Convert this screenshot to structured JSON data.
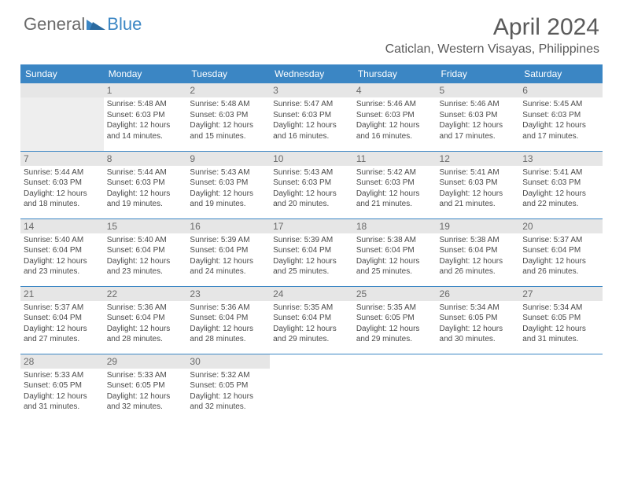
{
  "logo": {
    "general": "General",
    "blue": "Blue"
  },
  "title": "April 2024",
  "location": "Caticlan, Western Visayas, Philippines",
  "colors": {
    "header_bg": "#3b86c4",
    "header_text": "#ffffff",
    "border": "#3b86c4",
    "daynum_bg": "#e6e6e6",
    "text": "#4a4a4a",
    "title_text": "#5a5a5a"
  },
  "dayNames": [
    "Sunday",
    "Monday",
    "Tuesday",
    "Wednesday",
    "Thursday",
    "Friday",
    "Saturday"
  ],
  "weeks": [
    [
      null,
      {
        "n": "1",
        "sr": "5:48 AM",
        "ss": "6:03 PM",
        "dl": "12 hours and 14 minutes."
      },
      {
        "n": "2",
        "sr": "5:48 AM",
        "ss": "6:03 PM",
        "dl": "12 hours and 15 minutes."
      },
      {
        "n": "3",
        "sr": "5:47 AM",
        "ss": "6:03 PM",
        "dl": "12 hours and 16 minutes."
      },
      {
        "n": "4",
        "sr": "5:46 AM",
        "ss": "6:03 PM",
        "dl": "12 hours and 16 minutes."
      },
      {
        "n": "5",
        "sr": "5:46 AM",
        "ss": "6:03 PM",
        "dl": "12 hours and 17 minutes."
      },
      {
        "n": "6",
        "sr": "5:45 AM",
        "ss": "6:03 PM",
        "dl": "12 hours and 17 minutes."
      }
    ],
    [
      {
        "n": "7",
        "sr": "5:44 AM",
        "ss": "6:03 PM",
        "dl": "12 hours and 18 minutes."
      },
      {
        "n": "8",
        "sr": "5:44 AM",
        "ss": "6:03 PM",
        "dl": "12 hours and 19 minutes."
      },
      {
        "n": "9",
        "sr": "5:43 AM",
        "ss": "6:03 PM",
        "dl": "12 hours and 19 minutes."
      },
      {
        "n": "10",
        "sr": "5:43 AM",
        "ss": "6:03 PM",
        "dl": "12 hours and 20 minutes."
      },
      {
        "n": "11",
        "sr": "5:42 AM",
        "ss": "6:03 PM",
        "dl": "12 hours and 21 minutes."
      },
      {
        "n": "12",
        "sr": "5:41 AM",
        "ss": "6:03 PM",
        "dl": "12 hours and 21 minutes."
      },
      {
        "n": "13",
        "sr": "5:41 AM",
        "ss": "6:03 PM",
        "dl": "12 hours and 22 minutes."
      }
    ],
    [
      {
        "n": "14",
        "sr": "5:40 AM",
        "ss": "6:04 PM",
        "dl": "12 hours and 23 minutes."
      },
      {
        "n": "15",
        "sr": "5:40 AM",
        "ss": "6:04 PM",
        "dl": "12 hours and 23 minutes."
      },
      {
        "n": "16",
        "sr": "5:39 AM",
        "ss": "6:04 PM",
        "dl": "12 hours and 24 minutes."
      },
      {
        "n": "17",
        "sr": "5:39 AM",
        "ss": "6:04 PM",
        "dl": "12 hours and 25 minutes."
      },
      {
        "n": "18",
        "sr": "5:38 AM",
        "ss": "6:04 PM",
        "dl": "12 hours and 25 minutes."
      },
      {
        "n": "19",
        "sr": "5:38 AM",
        "ss": "6:04 PM",
        "dl": "12 hours and 26 minutes."
      },
      {
        "n": "20",
        "sr": "5:37 AM",
        "ss": "6:04 PM",
        "dl": "12 hours and 26 minutes."
      }
    ],
    [
      {
        "n": "21",
        "sr": "5:37 AM",
        "ss": "6:04 PM",
        "dl": "12 hours and 27 minutes."
      },
      {
        "n": "22",
        "sr": "5:36 AM",
        "ss": "6:04 PM",
        "dl": "12 hours and 28 minutes."
      },
      {
        "n": "23",
        "sr": "5:36 AM",
        "ss": "6:04 PM",
        "dl": "12 hours and 28 minutes."
      },
      {
        "n": "24",
        "sr": "5:35 AM",
        "ss": "6:04 PM",
        "dl": "12 hours and 29 minutes."
      },
      {
        "n": "25",
        "sr": "5:35 AM",
        "ss": "6:05 PM",
        "dl": "12 hours and 29 minutes."
      },
      {
        "n": "26",
        "sr": "5:34 AM",
        "ss": "6:05 PM",
        "dl": "12 hours and 30 minutes."
      },
      {
        "n": "27",
        "sr": "5:34 AM",
        "ss": "6:05 PM",
        "dl": "12 hours and 31 minutes."
      }
    ],
    [
      {
        "n": "28",
        "sr": "5:33 AM",
        "ss": "6:05 PM",
        "dl": "12 hours and 31 minutes."
      },
      {
        "n": "29",
        "sr": "5:33 AM",
        "ss": "6:05 PM",
        "dl": "12 hours and 32 minutes."
      },
      {
        "n": "30",
        "sr": "5:32 AM",
        "ss": "6:05 PM",
        "dl": "12 hours and 32 minutes."
      },
      null,
      null,
      null,
      null
    ]
  ],
  "labels": {
    "sunrise": "Sunrise:",
    "sunset": "Sunset:",
    "daylight": "Daylight:"
  }
}
